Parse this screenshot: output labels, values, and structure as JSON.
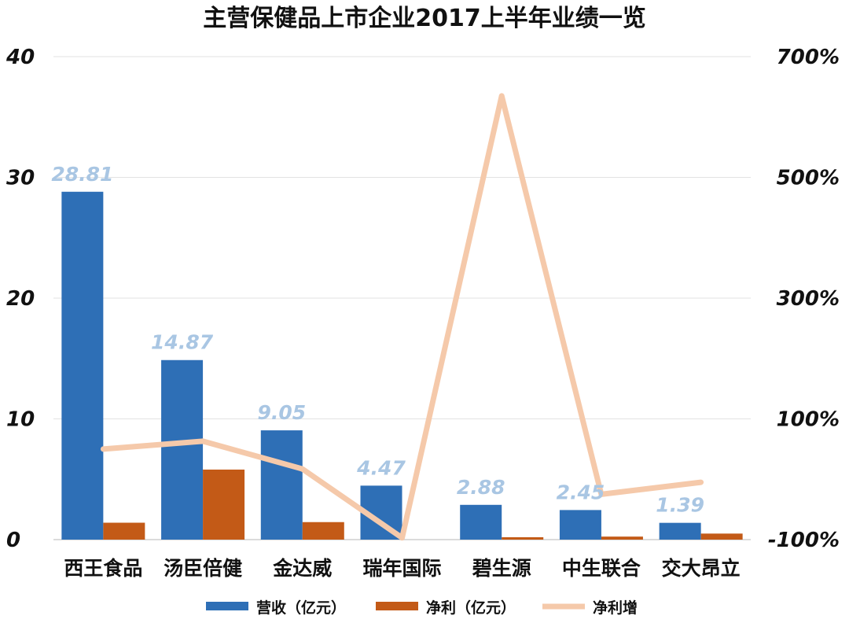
{
  "chart_data": {
    "type": "bar",
    "title": "主营保健品上市企业2017上半年业绩一览",
    "categories": [
      "西王食品",
      "汤臣倍健",
      "金达威",
      "瑞年国际",
      "碧生源",
      "中生联合",
      "交大昂立"
    ],
    "series": [
      {
        "name": "营收（亿元）",
        "type": "bar",
        "axis": "left",
        "color": "#2e6fb6",
        "values": [
          28.81,
          14.87,
          9.05,
          4.47,
          2.88,
          2.45,
          1.39
        ],
        "data_labels": [
          "28.81",
          "14.87",
          "9.05",
          "4.47",
          "2.88",
          "2.45",
          "1.39"
        ]
      },
      {
        "name": "净利（亿元）",
        "type": "bar",
        "axis": "left",
        "color": "#c35a17",
        "values": [
          1.4,
          5.8,
          1.45,
          0,
          0.2,
          0.25,
          0.5
        ]
      },
      {
        "name": "净利增",
        "type": "line",
        "axis": "right",
        "color": "#f5c9aa",
        "values": [
          50,
          63,
          17,
          -97,
          635,
          -25,
          -5
        ]
      }
    ],
    "y_left": {
      "ylim": [
        0,
        40
      ],
      "ticks": [
        0,
        10,
        20,
        30,
        40
      ],
      "tick_labels": [
        "0",
        "10",
        "20",
        "30",
        "40"
      ]
    },
    "y_right": {
      "ylim": [
        -100,
        700
      ],
      "ticks": [
        -100,
        100,
        300,
        500,
        700
      ],
      "tick_labels": [
        "-100%",
        "100%",
        "300%",
        "500%",
        "700%"
      ]
    },
    "grid": true,
    "legend": "bottom"
  }
}
